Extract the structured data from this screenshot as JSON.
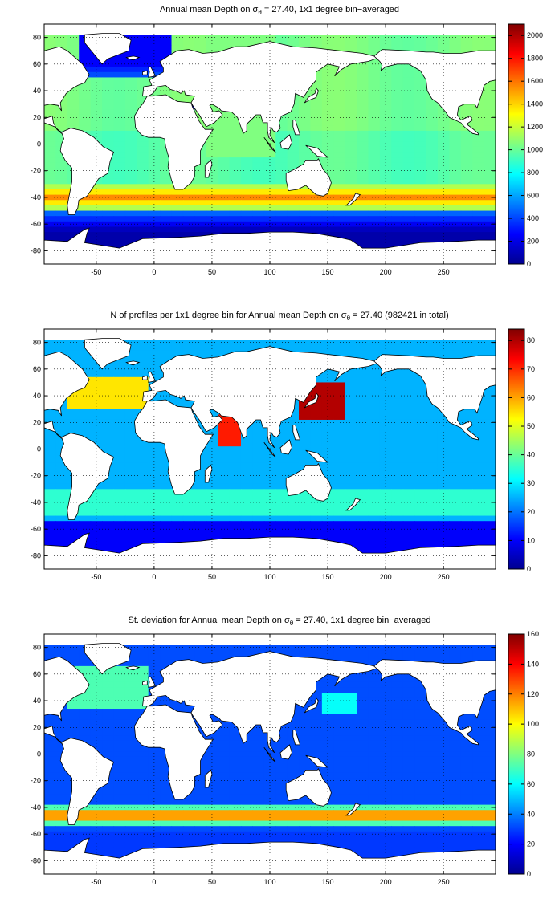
{
  "colors": {
    "jet": [
      "#00008f",
      "#0000ff",
      "#0080ff",
      "#00ffff",
      "#80ff80",
      "#ffff00",
      "#ff8000",
      "#ff0000",
      "#800000"
    ],
    "land": "#ffffff",
    "coast": "#000000",
    "grid": "#000000"
  },
  "chart_data": [
    {
      "type": "heatmap",
      "title_before": "Annual mean Depth on ",
      "title_symbol": "σ",
      "title_sub": "θ",
      "title_after": " = 27.40, 1x1 degree bin−averaged",
      "x_ticks": [
        "-50",
        "0",
        "50",
        "100",
        "150",
        "200",
        "250"
      ],
      "y_ticks": [
        "80",
        "60",
        "40",
        "20",
        "0",
        "-20",
        "-40",
        "-60",
        "-80"
      ],
      "xlim": [
        -95,
        295
      ],
      "ylim": [
        -90,
        90
      ],
      "grid": true,
      "colorbar": {
        "clim": [
          0,
          2100
        ],
        "ticks": [
          "2000",
          "1800",
          "1600",
          "1400",
          "1200",
          "1000",
          "800",
          "600",
          "400",
          "200",
          "0"
        ]
      },
      "field": "depth"
    },
    {
      "type": "heatmap",
      "title_before": "N of profiles per 1x1 degree bin for Annual mean Depth on ",
      "title_symbol": "σ",
      "title_sub": "θ",
      "title_after": " = 27.40 (982421 in total)",
      "x_ticks": [
        "-50",
        "0",
        "50",
        "100",
        "150",
        "200",
        "250"
      ],
      "y_ticks": [
        "80",
        "60",
        "40",
        "20",
        "0",
        "-20",
        "-40",
        "-60",
        "-80"
      ],
      "xlim": [
        -95,
        295
      ],
      "ylim": [
        -90,
        90
      ],
      "grid": true,
      "colorbar": {
        "clim": [
          0,
          84
        ],
        "ticks": [
          "80",
          "70",
          "60",
          "50",
          "40",
          "30",
          "20",
          "10",
          "0"
        ]
      },
      "field": "count"
    },
    {
      "type": "heatmap",
      "title_before": "St. deviation for Annual mean Depth on ",
      "title_symbol": "σ",
      "title_sub": "θ",
      "title_after": " = 27.40, 1x1 degree bin−averaged",
      "x_ticks": [
        "-50",
        "0",
        "50",
        "100",
        "150",
        "200",
        "250"
      ],
      "y_ticks": [
        "80",
        "60",
        "40",
        "20",
        "0",
        "-20",
        "-40",
        "-60",
        "-80"
      ],
      "xlim": [
        -95,
        295
      ],
      "ylim": [
        -90,
        90
      ],
      "grid": true,
      "colorbar": {
        "clim": [
          0,
          160
        ],
        "ticks": [
          "160",
          "140",
          "120",
          "100",
          "80",
          "60",
          "40",
          "20",
          "0"
        ]
      },
      "field": "std"
    }
  ]
}
